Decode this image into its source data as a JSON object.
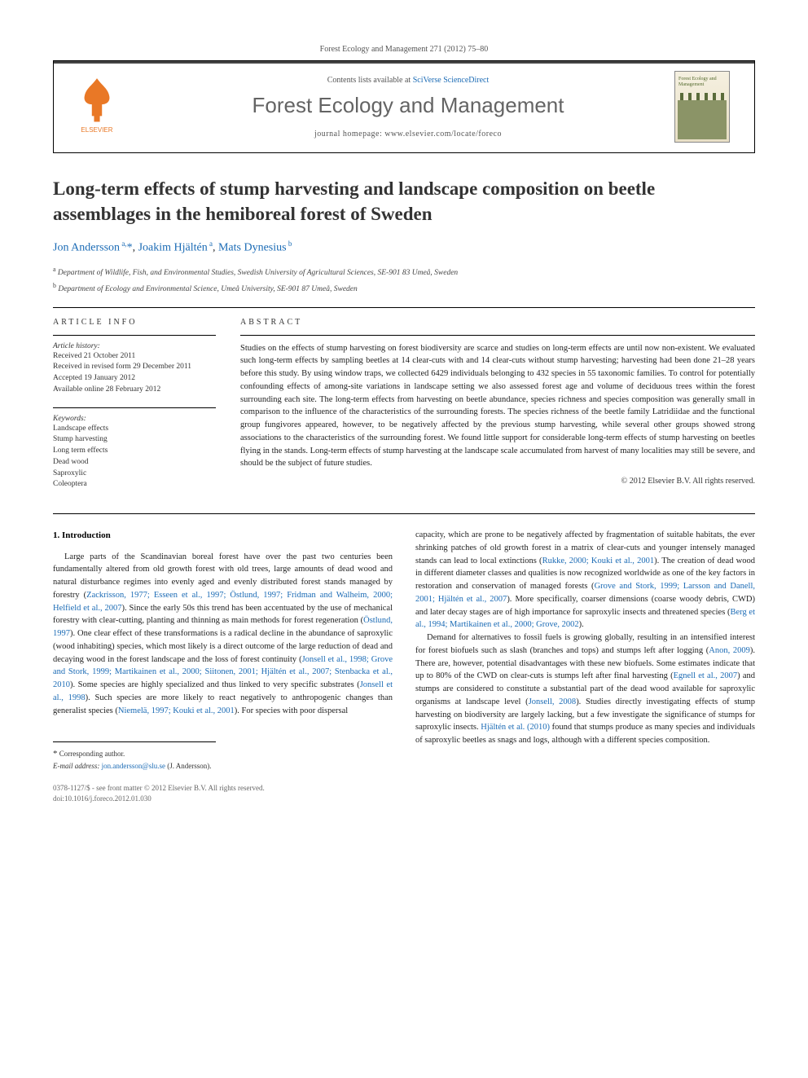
{
  "journal_ref": "Forest Ecology and Management 271 (2012) 75–80",
  "header": {
    "contents_prefix": "Contents lists available at ",
    "contents_link": "SciVerse ScienceDirect",
    "journal_title": "Forest Ecology and Management",
    "homepage": "journal homepage: www.elsevier.com/locate/foreco",
    "publisher_name": "ELSEVIER",
    "cover_title": "Forest Ecology and Management"
  },
  "article": {
    "title": "Long-term effects of stump harvesting and landscape composition on beetle assemblages in the hemiboreal forest of Sweden",
    "authors_html": "Jon Andersson<sup> a,</sup>*, Joakim Hjältén<sup> a</sup>, Mats Dynesius<sup> b</sup>",
    "affiliations": [
      {
        "sup": "a",
        "text": "Department of Wildlife, Fish, and Environmental Studies, Swedish University of Agricultural Sciences, SE-901 83 Umeå, Sweden"
      },
      {
        "sup": "b",
        "text": "Department of Ecology and Environmental Science, Umeå University, SE-901 87 Umeå, Sweden"
      }
    ]
  },
  "info": {
    "heading": "ARTICLE INFO",
    "history_head": "Article history:",
    "history": [
      "Received 21 October 2011",
      "Received in revised form 29 December 2011",
      "Accepted 19 January 2012",
      "Available online 28 February 2012"
    ],
    "keywords_head": "Keywords:",
    "keywords": [
      "Landscape effects",
      "Stump harvesting",
      "Long term effects",
      "Dead wood",
      "Saproxylic",
      "Coleoptera"
    ]
  },
  "abstract": {
    "heading": "ABSTRACT",
    "text": "Studies on the effects of stump harvesting on forest biodiversity are scarce and studies on long-term effects are until now non-existent. We evaluated such long-term effects by sampling beetles at 14 clear-cuts with and 14 clear-cuts without stump harvesting; harvesting had been done 21–28 years before this study. By using window traps, we collected 6429 individuals belonging to 432 species in 55 taxonomic families. To control for potentially confounding effects of among-site variations in landscape setting we also assessed forest age and volume of deciduous trees within the forest surrounding each site. The long-term effects from harvesting on beetle abundance, species richness and species composition was generally small in comparison to the influence of the characteristics of the surrounding forests. The species richness of the beetle family Latridiidae and the functional group fungivores appeared, however, to be negatively affected by the previous stump harvesting, while several other groups showed strong associations to the characteristics of the surrounding forest. We found little support for considerable long-term effects of stump harvesting on beetles flying in the stands. Long-term effects of stump harvesting at the landscape scale accumulated from harvest of many localities may still be severe, and should be the subject of future studies.",
    "copyright": "© 2012 Elsevier B.V. All rights reserved."
  },
  "body": {
    "heading": "1. Introduction",
    "col1_html": "Large parts of the Scandinavian boreal forest have over the past two centuries been fundamentally altered from old growth forest with old trees, large amounts of dead wood and natural disturbance regimes into evenly aged and evenly distributed forest stands managed by forestry (<a href='#'>Zackrisson, 1977; Esseen et al., 1997; Östlund, 1997; Fridman and Walheim, 2000; Helfield et al., 2007</a>). Since the early 50s this trend has been accentuated by the use of mechanical forestry with clear-cutting, planting and thinning as main methods for forest regeneration (<a href='#'>Östlund, 1997</a>). One clear effect of these transformations is a radical decline in the abundance of saproxylic (wood inhabiting) species, which most likely is a direct outcome of the large reduction of dead and decaying wood in the forest landscape and the loss of forest continuity (<a href='#'>Jonsell et al., 1998; Grove and Stork, 1999; Martikainen et al., 2000; Siitonen, 2001; Hjältén et al., 2007; Stenbacka et al., 2010</a>). Some species are highly specialized and thus linked to very specific substrates (<a href='#'>Jonsell et al., 1998</a>). Such species are more likely to react negatively to anthropogenic changes than generalist species (<a href='#'>Niemelä, 1997; Kouki et al., 2001</a>). For species with poor dispersal",
    "col2_p1_html": "capacity, which are prone to be negatively affected by fragmentation of suitable habitats, the ever shrinking patches of old growth forest in a matrix of clear-cuts and younger intensely managed stands can lead to local extinctions (<a href='#'>Rukke, 2000; Kouki et al., 2001</a>). The creation of dead wood in different diameter classes and qualities is now recognized worldwide as one of the key factors in restoration and conservation of managed forests (<a href='#'>Grove and Stork, 1999; Larsson and Danell, 2001; Hjältén et al., 2007</a>). More specifically, coarser dimensions (coarse woody debris, CWD) and later decay stages are of high importance for saproxylic insects and threatened species (<a href='#'>Berg et al., 1994; Martikainen et al., 2000; Grove, 2002</a>).",
    "col2_p2_html": "Demand for alternatives to fossil fuels is growing globally, resulting in an intensified interest for forest biofuels such as slash (branches and tops) and stumps left after logging (<a href='#'>Anon, 2009</a>). There are, however, potential disadvantages with these new biofuels. Some estimates indicate that up to 80% of the CWD on clear-cuts is stumps left after final harvesting (<a href='#'>Egnell et al., 2007</a>) and stumps are considered to constitute a substantial part of the dead wood available for saproxylic organisms at landscape level (<a href='#'>Jonsell, 2008</a>). Studies directly investigating effects of stump harvesting on biodiversity are largely lacking, but a few investigate the significance of stumps for saproxylic insects. <a href='#'>Hjältén et al. (2010)</a> found that stumps produce as many species and individuals of saproxylic beetles as snags and logs, although with a different species composition."
  },
  "footer": {
    "corr": "Corresponding author.",
    "email_label": "E-mail address:",
    "email": "jon.andersson@slu.se",
    "email_author": " (J. Andersson)."
  },
  "bottom": {
    "line1": "0378-1127/$ - see front matter © 2012 Elsevier B.V. All rights reserved.",
    "line2": "doi:10.1016/j.foreco.2012.01.030"
  },
  "colors": {
    "link": "#1b6bb5",
    "elsevier_orange": "#e97826",
    "text": "#222222",
    "rule": "#000000"
  }
}
